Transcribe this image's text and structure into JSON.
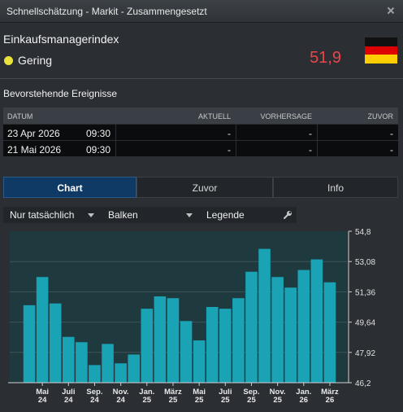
{
  "window": {
    "title": "Schnellschätzung - Markit - Zusammengesetzt"
  },
  "indicator": {
    "name": "Einkaufsmanagerindex",
    "impact_label": "Gering",
    "impact_color": "#e8e23a",
    "value": "51,9",
    "value_color": "#e8474a",
    "flag": "germany-flag"
  },
  "events": {
    "title": "Bevorstehende Ereignisse",
    "columns": {
      "date": "DATUM",
      "actual": "AKTUELL",
      "forecast": "VORHERSAGE",
      "previous": "ZUVOR"
    },
    "rows": [
      {
        "date": "23 Apr 2026",
        "time": "09:30",
        "actual": "-",
        "forecast": "-",
        "previous": "-"
      },
      {
        "date": "21 Mai 2026",
        "time": "09:30",
        "actual": "-",
        "forecast": "-",
        "previous": "-"
      }
    ]
  },
  "tabs": [
    "Chart",
    "Zuvor",
    "Info"
  ],
  "toolbar": {
    "filter": "Nur tatsächlich",
    "chart_type": "Balken",
    "legend": "Legende"
  },
  "chart_data": {
    "type": "bar",
    "bar_color": "#1aa3b5",
    "ylim": [
      46.2,
      54.8
    ],
    "yticks": [
      "54,8",
      "53,08",
      "51,36",
      "49,64",
      "47,92",
      "46,2"
    ],
    "xticks": [
      {
        "top": "Mai",
        "bottom": "24",
        "index": 1
      },
      {
        "top": "Juli",
        "bottom": "24",
        "index": 3
      },
      {
        "top": "Sep.",
        "bottom": "24",
        "index": 5
      },
      {
        "top": "Nov.",
        "bottom": "24",
        "index": 7
      },
      {
        "top": "Jan.",
        "bottom": "25",
        "index": 9
      },
      {
        "top": "März",
        "bottom": "25",
        "index": 11
      },
      {
        "top": "Mai",
        "bottom": "25",
        "index": 13
      },
      {
        "top": "Juli",
        "bottom": "25",
        "index": 15
      },
      {
        "top": "Sep.",
        "bottom": "25",
        "index": 17
      },
      {
        "top": "Nov.",
        "bottom": "25",
        "index": 19
      },
      {
        "top": "Jan.",
        "bottom": "26",
        "index": 21
      },
      {
        "top": "März",
        "bottom": "26",
        "index": 23
      }
    ],
    "values": [
      50.6,
      52.2,
      50.7,
      48.8,
      48.5,
      47.2,
      48.4,
      47.3,
      47.8,
      50.4,
      51.1,
      51.0,
      49.7,
      48.6,
      50.5,
      50.4,
      51.0,
      52.5,
      53.8,
      52.2,
      51.6,
      52.6,
      53.2,
      51.9
    ]
  }
}
